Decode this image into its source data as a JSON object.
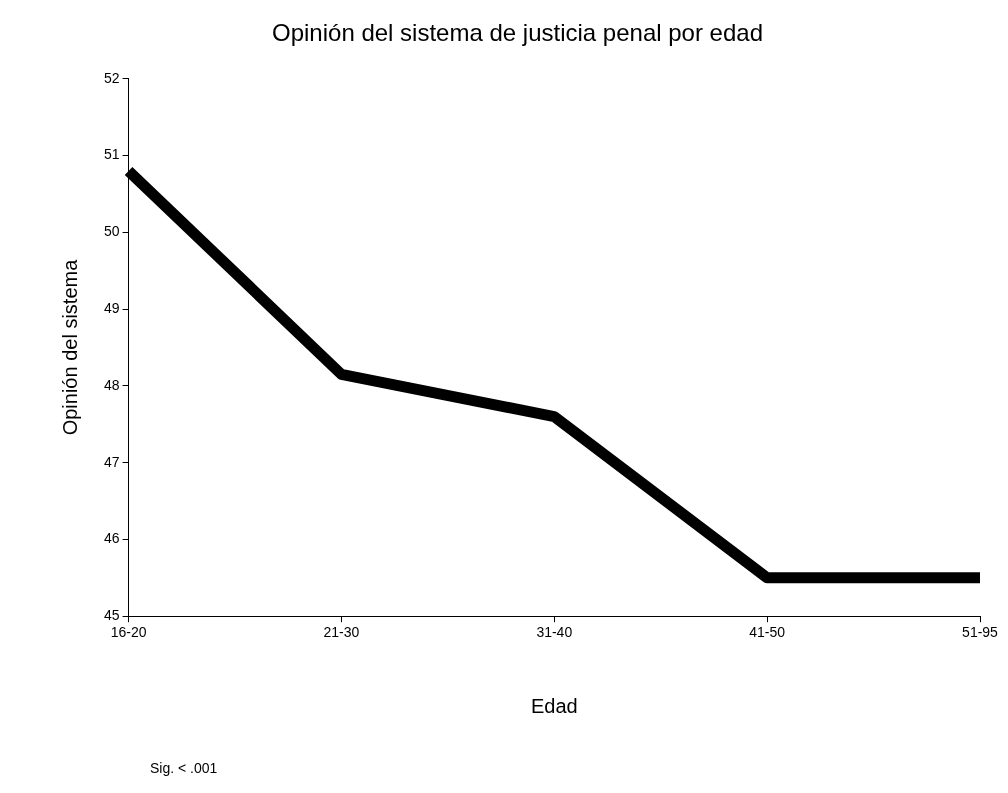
{
  "chart_data": {
    "type": "line",
    "title": "Opinión del sistema de justicia penal por edad",
    "xlabel": "Edad",
    "ylabel": "Opinión del sistema",
    "categories": [
      "16-20",
      "21-30",
      "31-40",
      "41-50",
      "51-95"
    ],
    "series": [
      {
        "color": "#000000",
        "values": [
          50.8,
          48.15,
          47.6,
          45.5,
          45.5
        ]
      }
    ],
    "ylim": [
      45,
      52
    ],
    "yticks": [
      45,
      46,
      47,
      48,
      49,
      50,
      51,
      52
    ],
    "grid": false,
    "legend": false,
    "marker": "none",
    "line_style": "solid",
    "annotations": [
      "Sig. < .001"
    ]
  }
}
